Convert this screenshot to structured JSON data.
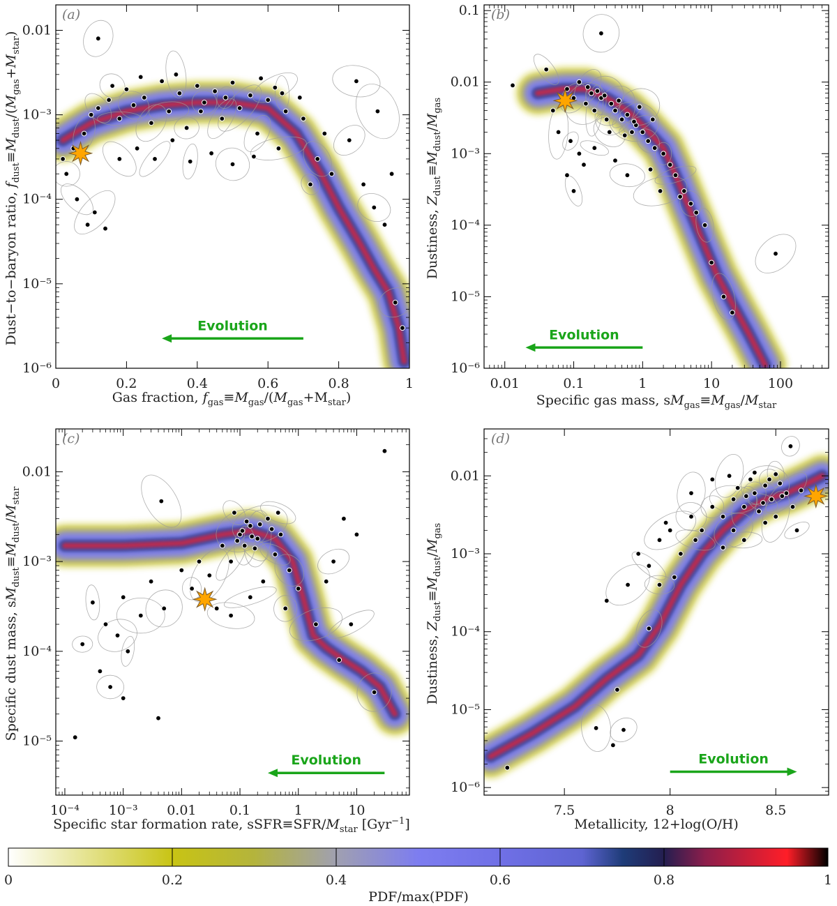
{
  "chart_data": [
    {
      "id": "a",
      "type": "scatter",
      "panel_label": "(a)",
      "xscale": "linear",
      "yscale": "log",
      "xlim": [
        0,
        1
      ],
      "ylim": [
        1e-06,
        0.02
      ],
      "xticks": [
        0,
        0.2,
        0.4,
        0.6,
        0.8,
        1
      ],
      "xtick_labels": [
        "0",
        "0.2",
        "0.4",
        "0.6",
        "0.8",
        "1"
      ],
      "yticks": [
        1e-06,
        1e-05,
        0.0001,
        0.001,
        0.01
      ],
      "ytick_labels": [
        "10⁻⁶",
        "10⁻⁵",
        "10⁻⁴",
        "10⁻³",
        "0.01"
      ],
      "xlabel": "Gas fraction, f_gas≡M_gas/(M_gas+M_star)",
      "ylabel": "Dust-to-baryon ratio, f_dust≡M_dust/(M_gas+M_star)",
      "evolution": {
        "label": "Evolution",
        "from": 0.7,
        "to": 0.3,
        "y": 1.6e-06
      },
      "star": {
        "x": 0.07,
        "y": 0.00035
      },
      "density_track": [
        [
          0.02,
          0.0005
        ],
        [
          0.1,
          0.0008
        ],
        [
          0.2,
          0.0011
        ],
        [
          0.3,
          0.0013
        ],
        [
          0.4,
          0.0014
        ],
        [
          0.5,
          0.0014
        ],
        [
          0.6,
          0.0012
        ],
        [
          0.68,
          0.0006
        ],
        [
          0.75,
          0.0002
        ],
        [
          0.8,
          8e-05
        ],
        [
          0.86,
          3e-05
        ],
        [
          0.9,
          1.5e-05
        ],
        [
          0.94,
          8e-06
        ],
        [
          0.97,
          3e-06
        ],
        [
          0.985,
          1.2e-06
        ]
      ],
      "points": [
        [
          0.12,
          0.008
        ],
        [
          0.02,
          0.0003
        ],
        [
          0.03,
          0.0002
        ],
        [
          0.05,
          0.0004
        ],
        [
          0.08,
          0.0006
        ],
        [
          0.1,
          0.001
        ],
        [
          0.12,
          0.0012
        ],
        [
          0.15,
          0.0015
        ],
        [
          0.18,
          0.0009
        ],
        [
          0.2,
          0.002
        ],
        [
          0.22,
          0.0013
        ],
        [
          0.25,
          0.0016
        ],
        [
          0.27,
          0.0008
        ],
        [
          0.3,
          0.0025
        ],
        [
          0.32,
          0.0011
        ],
        [
          0.35,
          0.0018
        ],
        [
          0.37,
          0.0007
        ],
        [
          0.4,
          0.0022
        ],
        [
          0.42,
          0.0014
        ],
        [
          0.45,
          0.0019
        ],
        [
          0.47,
          0.0009
        ],
        [
          0.5,
          0.0024
        ],
        [
          0.52,
          0.0012
        ],
        [
          0.55,
          0.0017
        ],
        [
          0.57,
          0.0006
        ],
        [
          0.6,
          0.0015
        ],
        [
          0.62,
          0.0021
        ],
        [
          0.65,
          0.0011
        ],
        [
          0.06,
          0.0001
        ],
        [
          0.09,
          5e-05
        ],
        [
          0.11,
          7e-05
        ],
        [
          0.14,
          4.5e-05
        ],
        [
          0.18,
          0.0003
        ],
        [
          0.23,
          0.0004
        ],
        [
          0.28,
          0.0003
        ],
        [
          0.33,
          0.0005
        ],
        [
          0.38,
          0.00028
        ],
        [
          0.44,
          0.00035
        ],
        [
          0.5,
          0.00026
        ],
        [
          0.56,
          0.00032
        ],
        [
          0.63,
          0.0004
        ],
        [
          0.7,
          0.0009
        ],
        [
          0.74,
          0.0003
        ],
        [
          0.78,
          0.0002
        ],
        [
          0.83,
          0.0005
        ],
        [
          0.87,
          0.00015
        ],
        [
          0.9,
          8e-05
        ],
        [
          0.93,
          5e-05
        ],
        [
          0.96,
          6e-06
        ],
        [
          0.98,
          3e-06
        ],
        [
          0.91,
          0.0011
        ],
        [
          0.95,
          0.0002
        ],
        [
          0.85,
          0.0025
        ],
        [
          0.76,
          0.0006
        ],
        [
          0.72,
          0.00015
        ],
        [
          0.69,
          0.0016
        ],
        [
          0.16,
          0.0022
        ],
        [
          0.24,
          0.0028
        ],
        [
          0.34,
          0.003
        ],
        [
          0.41,
          0.0011
        ],
        [
          0.48,
          0.0016
        ],
        [
          0.58,
          0.0027
        ],
        [
          0.64,
          0.0018
        ]
      ]
    },
    {
      "id": "b",
      "type": "scatter",
      "panel_label": "(b)",
      "xscale": "log",
      "yscale": "log",
      "xlim": [
        0.005,
        500
      ],
      "ylim": [
        1e-06,
        0.12
      ],
      "xticks": [
        0.01,
        0.1,
        1,
        10,
        100
      ],
      "xtick_labels": [
        "0.01",
        "0.1",
        "1",
        "10",
        "100"
      ],
      "yticks": [
        1e-06,
        1e-05,
        0.0001,
        0.001,
        0.01,
        0.1
      ],
      "ytick_labels": [
        "10⁻⁶",
        "10⁻⁵",
        "10⁻⁴",
        "10⁻³",
        "0.01",
        "0.1"
      ],
      "xlabel": "Specific gas mass, sM_gas≡M_gas/M_star",
      "ylabel": "Dustiness, Z_dust≡M_dust/M_gas",
      "evolution": {
        "label": "Evolution",
        "from": 1,
        "to": 0.02,
        "y": 1.3e-06
      },
      "star": {
        "x": 0.075,
        "y": 0.0055
      },
      "density_track": [
        [
          0.03,
          0.007
        ],
        [
          0.07,
          0.008
        ],
        [
          0.15,
          0.008
        ],
        [
          0.3,
          0.006
        ],
        [
          0.6,
          0.004
        ],
        [
          1,
          0.0025
        ],
        [
          2,
          0.0012
        ],
        [
          3,
          0.0005
        ],
        [
          5,
          0.00015
        ],
        [
          8,
          5e-05
        ],
        [
          12,
          2e-05
        ],
        [
          20,
          8e-06
        ],
        [
          35,
          3e-06
        ],
        [
          60,
          1.1e-06
        ]
      ],
      "points": [
        [
          0.25,
          0.048
        ],
        [
          0.013,
          0.009
        ],
        [
          0.04,
          0.015
        ],
        [
          0.05,
          0.004
        ],
        [
          0.06,
          0.002
        ],
        [
          0.08,
          0.008
        ],
        [
          0.1,
          0.006
        ],
        [
          0.12,
          0.01
        ],
        [
          0.15,
          0.005
        ],
        [
          0.18,
          0.007
        ],
        [
          0.2,
          0.004
        ],
        [
          0.25,
          0.006
        ],
        [
          0.3,
          0.003
        ],
        [
          0.35,
          0.005
        ],
        [
          0.4,
          0.004
        ],
        [
          0.5,
          0.003
        ],
        [
          0.6,
          0.0035
        ],
        [
          0.7,
          0.002
        ],
        [
          0.8,
          0.0025
        ],
        [
          1,
          0.002
        ],
        [
          1.2,
          0.0015
        ],
        [
          1.5,
          0.0012
        ],
        [
          2,
          0.001
        ],
        [
          2.5,
          0.0007
        ],
        [
          3,
          0.0005
        ],
        [
          4,
          0.0003
        ],
        [
          5,
          0.0002
        ],
        [
          6,
          0.00015
        ],
        [
          8,
          0.0001
        ],
        [
          10,
          3e-05
        ],
        [
          15,
          1e-05
        ],
        [
          20,
          6e-06
        ],
        [
          85,
          4e-05
        ],
        [
          0.08,
          0.0005
        ],
        [
          0.1,
          0.0003
        ],
        [
          0.12,
          0.001
        ],
        [
          0.09,
          0.0015
        ],
        [
          0.14,
          0.0007
        ],
        [
          0.2,
          0.0012
        ],
        [
          0.4,
          0.0008
        ],
        [
          0.6,
          0.0005
        ],
        [
          1.3,
          0.0006
        ],
        [
          1.8,
          0.0003
        ],
        [
          3.5,
          0.00025
        ],
        [
          0.16,
          0.0085
        ],
        [
          0.22,
          0.0075
        ],
        [
          0.28,
          0.0065
        ],
        [
          0.45,
          0.0055
        ],
        [
          0.9,
          0.0045
        ],
        [
          1.4,
          0.003
        ],
        [
          0.33,
          0.002
        ],
        [
          0.55,
          0.0018
        ],
        [
          0.75,
          0.0028
        ]
      ]
    },
    {
      "id": "c",
      "type": "scatter",
      "panel_label": "(c)",
      "xscale": "log",
      "yscale": "log",
      "xlim": [
        7e-05,
        80
      ],
      "ylim": [
        2.5e-06,
        0.03
      ],
      "xticks": [
        0.0001,
        0.001,
        0.01,
        0.1,
        1,
        10
      ],
      "xtick_labels": [
        "10⁻⁴",
        "10⁻³",
        "0.01",
        "0.1",
        "1",
        "10"
      ],
      "yticks": [
        1e-05,
        0.0001,
        0.001,
        0.01
      ],
      "ytick_labels": [
        "10⁻⁵",
        "10⁻⁴",
        "10⁻³",
        "0.01"
      ],
      "xlabel": "Specific star formation rate, sSFR≡SFR/M_star [Gyr⁻¹]",
      "ylabel": "Specific dust mass, sM_dust≡M_dust/M_star",
      "evolution": {
        "label": "Evolution",
        "from": 30,
        "to": 0.3,
        "y": 3.2e-06
      },
      "star": {
        "x": 0.025,
        "y": 0.00038
      },
      "density_track": [
        [
          0.0001,
          0.0015
        ],
        [
          0.001,
          0.0015
        ],
        [
          0.01,
          0.0016
        ],
        [
          0.05,
          0.002
        ],
        [
          0.15,
          0.0022
        ],
        [
          0.4,
          0.0018
        ],
        [
          0.8,
          0.001
        ],
        [
          1.2,
          0.0004
        ],
        [
          1.8,
          0.00015
        ],
        [
          3,
          0.00011
        ],
        [
          6,
          8e-05
        ],
        [
          12,
          6e-05
        ],
        [
          25,
          4e-05
        ],
        [
          45,
          2e-05
        ]
      ],
      "points": [
        [
          0.0045,
          0.0047
        ],
        [
          0.00015,
          1.1e-05
        ],
        [
          0.0003,
          0.00035
        ],
        [
          0.0005,
          0.0002
        ],
        [
          0.0008,
          0.00015
        ],
        [
          0.001,
          0.0004
        ],
        [
          0.002,
          0.00025
        ],
        [
          0.003,
          0.0006
        ],
        [
          0.005,
          0.0003
        ],
        [
          0.01,
          0.0008
        ],
        [
          0.015,
          0.0005
        ],
        [
          0.02,
          0.001
        ],
        [
          0.03,
          0.0007
        ],
        [
          0.05,
          0.0015
        ],
        [
          0.07,
          0.001
        ],
        [
          0.1,
          0.002
        ],
        [
          0.12,
          0.0015
        ],
        [
          0.15,
          0.0025
        ],
        [
          0.2,
          0.0018
        ],
        [
          0.3,
          0.003
        ],
        [
          0.4,
          0.0012
        ],
        [
          0.5,
          0.002
        ],
        [
          0.7,
          0.0008
        ],
        [
          1,
          0.0005
        ],
        [
          2,
          0.0002
        ],
        [
          5,
          8e-05
        ],
        [
          8,
          0.0002
        ],
        [
          10,
          0.002
        ],
        [
          20,
          3.5e-05
        ],
        [
          30,
          0.017
        ],
        [
          0.0002,
          0.00012
        ],
        [
          0.0004,
          6e-05
        ],
        [
          0.0006,
          4e-05
        ],
        [
          0.001,
          3e-05
        ],
        [
          0.0012,
          0.0001
        ],
        [
          0.004,
          1.8e-05
        ],
        [
          0.07,
          0.00025
        ],
        [
          0.04,
          0.0003
        ],
        [
          0.15,
          0.0004
        ],
        [
          0.25,
          0.0006
        ],
        [
          0.6,
          0.0003
        ],
        [
          3,
          0.0006
        ],
        [
          4,
          0.001
        ],
        [
          6,
          0.003
        ],
        [
          0.08,
          0.0035
        ],
        [
          0.13,
          0.0028
        ],
        [
          0.18,
          0.0014
        ],
        [
          0.35,
          0.0023
        ],
        [
          0.45,
          0.0035
        ],
        [
          0.09,
          0.0017
        ],
        [
          0.11,
          0.0022
        ],
        [
          0.16,
          0.0019
        ],
        [
          0.22,
          0.0026
        ]
      ]
    },
    {
      "id": "d",
      "type": "scatter",
      "panel_label": "(d)",
      "xscale": "linear",
      "yscale": "log",
      "xlim": [
        7.12,
        8.75
      ],
      "ylim": [
        8e-07,
        0.04
      ],
      "xticks": [
        7.5,
        8,
        8.5
      ],
      "xtick_labels": [
        "7.5",
        "8",
        "8.5"
      ],
      "yticks": [
        1e-06,
        1e-05,
        0.0001,
        0.001,
        0.01
      ],
      "ytick_labels": [
        "10⁻⁶",
        "10⁻⁵",
        "10⁻⁴",
        "10⁻³",
        "0.01"
      ],
      "xlabel": "Metallicity, 12+log(O/H)",
      "ylabel": "Dustiness, Z_dust≡M_dust/M_gas",
      "evolution": {
        "label": "Evolution",
        "from": 8.0,
        "to": 8.6,
        "y": 1.1e-06
      },
      "star": {
        "x": 8.69,
        "y": 0.0055
      },
      "density_track": [
        [
          7.15,
          2.5e-06
        ],
        [
          7.35,
          5e-06
        ],
        [
          7.55,
          1.1e-05
        ],
        [
          7.7,
          2.5e-05
        ],
        [
          7.85,
          5e-05
        ],
        [
          7.95,
          0.00012
        ],
        [
          8.05,
          0.0004
        ],
        [
          8.15,
          0.001
        ],
        [
          8.25,
          0.002
        ],
        [
          8.35,
          0.0035
        ],
        [
          8.45,
          0.005
        ],
        [
          8.55,
          0.006
        ],
        [
          8.65,
          0.008
        ],
        [
          8.72,
          0.01
        ]
      ],
      "points": [
        [
          8.57,
          0.024
        ],
        [
          7.23,
          1.8e-06
        ],
        [
          7.65,
          5.8e-06
        ],
        [
          7.73,
          3.5e-06
        ],
        [
          7.78,
          5.5e-06
        ],
        [
          7.75,
          1.8e-05
        ],
        [
          7.9,
          0.00011
        ],
        [
          7.7,
          0.00025
        ],
        [
          7.8,
          0.0004
        ],
        [
          7.85,
          0.001
        ],
        [
          7.9,
          0.0007
        ],
        [
          7.95,
          0.0015
        ],
        [
          8.0,
          0.002
        ],
        [
          8.05,
          0.001
        ],
        [
          8.1,
          0.003
        ],
        [
          8.15,
          0.002
        ],
        [
          8.2,
          0.004
        ],
        [
          8.25,
          0.003
        ],
        [
          8.3,
          0.005
        ],
        [
          8.32,
          0.007
        ],
        [
          8.35,
          0.004
        ],
        [
          8.38,
          0.009
        ],
        [
          8.4,
          0.006
        ],
        [
          8.42,
          0.0035
        ],
        [
          8.45,
          0.0075
        ],
        [
          8.48,
          0.005
        ],
        [
          8.5,
          0.003
        ],
        [
          8.52,
          0.008
        ],
        [
          8.55,
          0.006
        ],
        [
          8.58,
          0.004
        ],
        [
          8.6,
          0.002
        ],
        [
          8.62,
          0.0065
        ],
        [
          8.3,
          0.002
        ],
        [
          8.2,
          0.009
        ],
        [
          8.1,
          0.006
        ],
        [
          8.25,
          0.0012
        ],
        [
          8.35,
          0.0015
        ],
        [
          8.45,
          0.0025
        ],
        [
          7.95,
          0.0004
        ],
        [
          8.02,
          0.0005
        ],
        [
          8.12,
          0.0015
        ],
        [
          7.98,
          0.0025
        ],
        [
          8.28,
          0.01
        ],
        [
          8.4,
          0.011
        ],
        [
          8.5,
          0.0105
        ],
        [
          8.36,
          0.0055
        ],
        [
          8.44,
          0.0045
        ],
        [
          8.53,
          0.0055
        ],
        [
          8.47,
          0.009
        ]
      ]
    }
  ],
  "colorbar": {
    "label": "PDF/max(PDF)",
    "tick_labels": [
      "0",
      "0.2",
      "0.4",
      "0.6",
      "0.8",
      "1"
    ],
    "stops": [
      {
        "pos": 0.0,
        "color": "#ffffff"
      },
      {
        "pos": 0.2,
        "color": "#c8c414"
      },
      {
        "pos": 0.3,
        "color": "#b4b43c"
      },
      {
        "pos": 0.4,
        "color": "#a0a0b0"
      },
      {
        "pos": 0.5,
        "color": "#7d7df0"
      },
      {
        "pos": 0.6,
        "color": "#7070e6"
      },
      {
        "pos": 0.7,
        "color": "#5e64d2"
      },
      {
        "pos": 0.75,
        "color": "#1e3c78"
      },
      {
        "pos": 0.8,
        "color": "#241e50"
      },
      {
        "pos": 0.85,
        "color": "#8c1e4b"
      },
      {
        "pos": 0.95,
        "color": "#ff1e28"
      },
      {
        "pos": 1.0,
        "color": "#000000"
      }
    ]
  },
  "colors": {
    "track_outer": "#c8c414",
    "track_mid": "#7d7df0",
    "track_inner": "#2a3a8a",
    "track_core": "#d8203a",
    "point_fill": "#000000",
    "point_edge": "#ffffff",
    "star_fill": "#ffa500",
    "evolution": "#1aa51a",
    "ellipse": "#9a9a9a"
  }
}
